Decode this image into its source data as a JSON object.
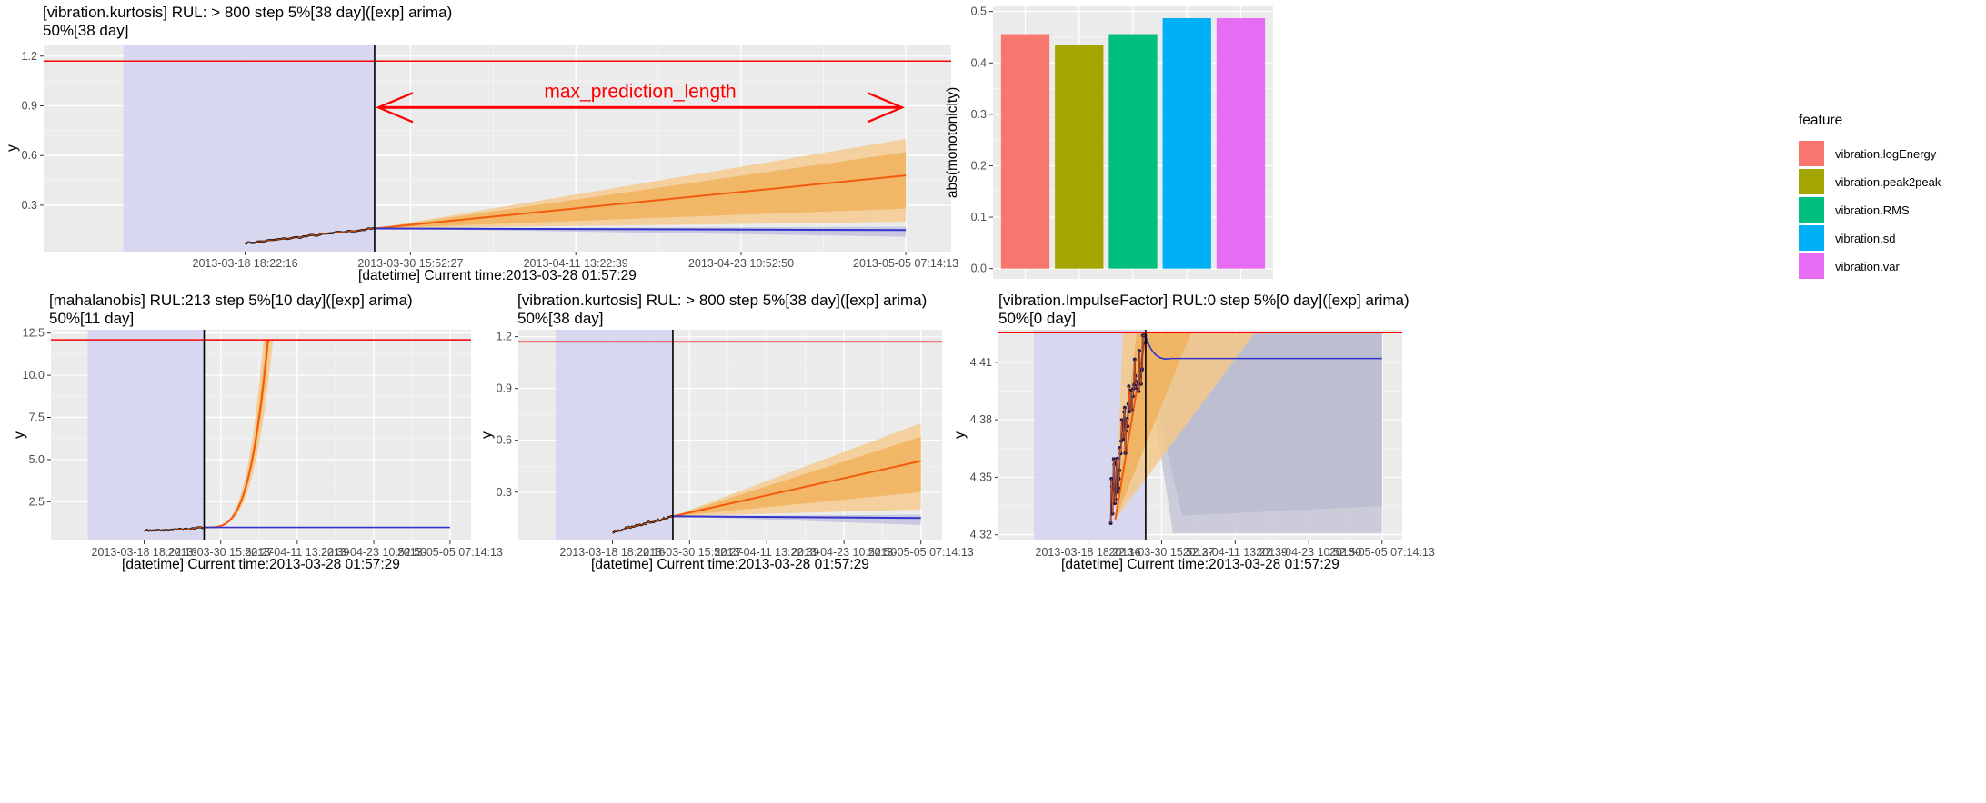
{
  "colors": {
    "panel_bg": "#ebebeb",
    "grid_major": "#ffffff",
    "history_band": "#d3d3f0",
    "threshold": "#ff0000",
    "current_time_line": "#000000",
    "forecast_line": "#f25a0c",
    "band_outer": "#f5c98a",
    "band_inner": "#f0b35e",
    "mean_line": "#3333cc",
    "observed": "#000000",
    "annotation": "#ff0000"
  },
  "chart_data": [
    {
      "id": "top-left",
      "type": "line",
      "title_lines": [
        "[vibration.kurtosis] RUL: > 800 step 5%[38 day]([exp] arima)",
        "50%[38 day]"
      ],
      "xlabel": "[datetime] Current time:2013-03-28 01:57:29",
      "ylabel": "y",
      "x_tick_labels": [
        "2013-03-18 18:22:16",
        "2013-03-30 15:52:27",
        "2013-04-11 13:22:39",
        "2013-04-23 10:52:50",
        "2013-05-05 07:14:13"
      ],
      "y_ticks": [
        0.3,
        0.6,
        0.9,
        1.2
      ],
      "y_tick_labels": [
        "0.3",
        "0.6",
        "0.9",
        "1.2"
      ],
      "ylim": [
        0.02,
        1.27
      ],
      "threshold": 1.17,
      "current_time": "2013-03-28 01:57:29",
      "history_start": "2013-03-10 00:00:00",
      "observed_start": "2013-03-18 18:22:16",
      "forecast_end": "2013-05-05 07:14:13",
      "observed_range": [
        0.07,
        0.16
      ],
      "forecast_median_end": 0.48,
      "band_inner_end": [
        0.28,
        0.62
      ],
      "band_outer_end": [
        0.2,
        0.7
      ],
      "mean_level": 0.15,
      "annotation": {
        "text": "max_prediction_length",
        "y": 0.89
      }
    },
    {
      "id": "top-right",
      "type": "bar",
      "categories": [
        "vibration.logEnergy",
        "vibration.peak2peak",
        "vibration.RMS",
        "vibration.sd",
        "vibration.var"
      ],
      "values": [
        0.456,
        0.435,
        0.456,
        0.487,
        0.487
      ],
      "colors": [
        "#f8766d",
        "#a3a500",
        "#00bf7d",
        "#00b0f6",
        "#e76bf3"
      ],
      "ylabel": "abs(monotonicity)",
      "y_ticks": [
        0,
        0.1,
        0.2,
        0.3,
        0.4,
        0.5
      ],
      "y_tick_labels": [
        "0.0",
        "0.1",
        "0.2",
        "0.3",
        "0.4",
        "0.5"
      ],
      "ylim": [
        -0.02,
        0.51
      ],
      "legend_title": "feature",
      "legend_position": "right"
    },
    {
      "id": "bottom-left",
      "type": "line",
      "title_lines": [
        "[mahalanobis] RUL:213 step 5%[10 day]([exp] arima)",
        "50%[11 day]"
      ],
      "xlabel": "[datetime] Current time:2013-03-28 01:57:29",
      "ylabel": "y",
      "x_tick_labels": [
        "2013-03-18 18:22:16",
        "2013-03-30 15:52:27",
        "2013-04-11 13:22:39",
        "2013-04-23 10:52:50",
        "2013-05-05 07:14:13"
      ],
      "y_ticks": [
        2.5,
        5.0,
        7.5,
        10.0,
        12.5
      ],
      "y_tick_labels": [
        "2.5",
        "5.0",
        "7.5",
        "10.0",
        "12.5"
      ],
      "ylim": [
        0.2,
        12.7
      ],
      "threshold": 12.1,
      "current_time": "2013-03-28 01:57:29",
      "history_start": "2013-03-10 00:00:00",
      "observed_start": "2013-03-18 18:22:16",
      "observed_range": [
        0.8,
        0.98
      ],
      "exp_end": "2013-04-07 00:00:00",
      "mean_level": 0.98
    },
    {
      "id": "bottom-middle",
      "type": "line",
      "title_lines": [
        "[vibration.kurtosis] RUL: > 800 step 5%[38 day]([exp] arima)",
        "50%[38 day]"
      ],
      "xlabel": "[datetime] Current time:2013-03-28 01:57:29",
      "ylabel": "y",
      "x_tick_labels": [
        "2013-03-18 18:22:16",
        "2013-03-30 15:52:27",
        "2013-04-11 13:22:39",
        "2013-04-23 10:52:50",
        "2013-05-05 07:14:13"
      ],
      "y_ticks": [
        0.3,
        0.6,
        0.9,
        1.2
      ],
      "y_tick_labels": [
        "0.3",
        "0.6",
        "0.9",
        "1.2"
      ],
      "ylim": [
        0.02,
        1.24
      ],
      "threshold": 1.17,
      "current_time": "2013-03-28 01:57:29",
      "history_start": "2013-03-10 00:00:00",
      "observed_start": "2013-03-18 18:22:16",
      "forecast_end": "2013-05-05 07:14:13",
      "observed_range": [
        0.07,
        0.16
      ],
      "forecast_median_end": 0.48,
      "band_inner_end": [
        0.3,
        0.62
      ],
      "band_outer_end": [
        0.2,
        0.7
      ],
      "mean_level": 0.15
    },
    {
      "id": "bottom-right",
      "type": "line",
      "title_lines": [
        "[vibration.ImpulseFactor] RUL:0 step 5%[0 day]([exp] arima)",
        "50%[0 day]"
      ],
      "xlabel": "[datetime] Current time:2013-03-28 01:57:29",
      "ylabel": "y",
      "x_tick_labels": [
        "2013-03-18 18:22:16",
        "2013-03-30 15:52:27",
        "2013-04-11 13:22:39",
        "2013-04-23 10:52:50",
        "2013-05-05 07:14:13"
      ],
      "y_ticks": [
        4.32,
        4.35,
        4.38,
        4.41
      ],
      "y_tick_labels": [
        "4.32",
        "4.35",
        "4.38",
        "4.41"
      ],
      "ylim": [
        4.317,
        4.427
      ],
      "threshold": 4.4255,
      "current_time": "2013-03-28 01:57:29",
      "history_start": "2013-03-10 00:00:00",
      "observed_start": "2013-03-18 18:22:16",
      "observed_range": [
        4.328,
        4.424
      ],
      "mean_level": 4.412
    }
  ]
}
